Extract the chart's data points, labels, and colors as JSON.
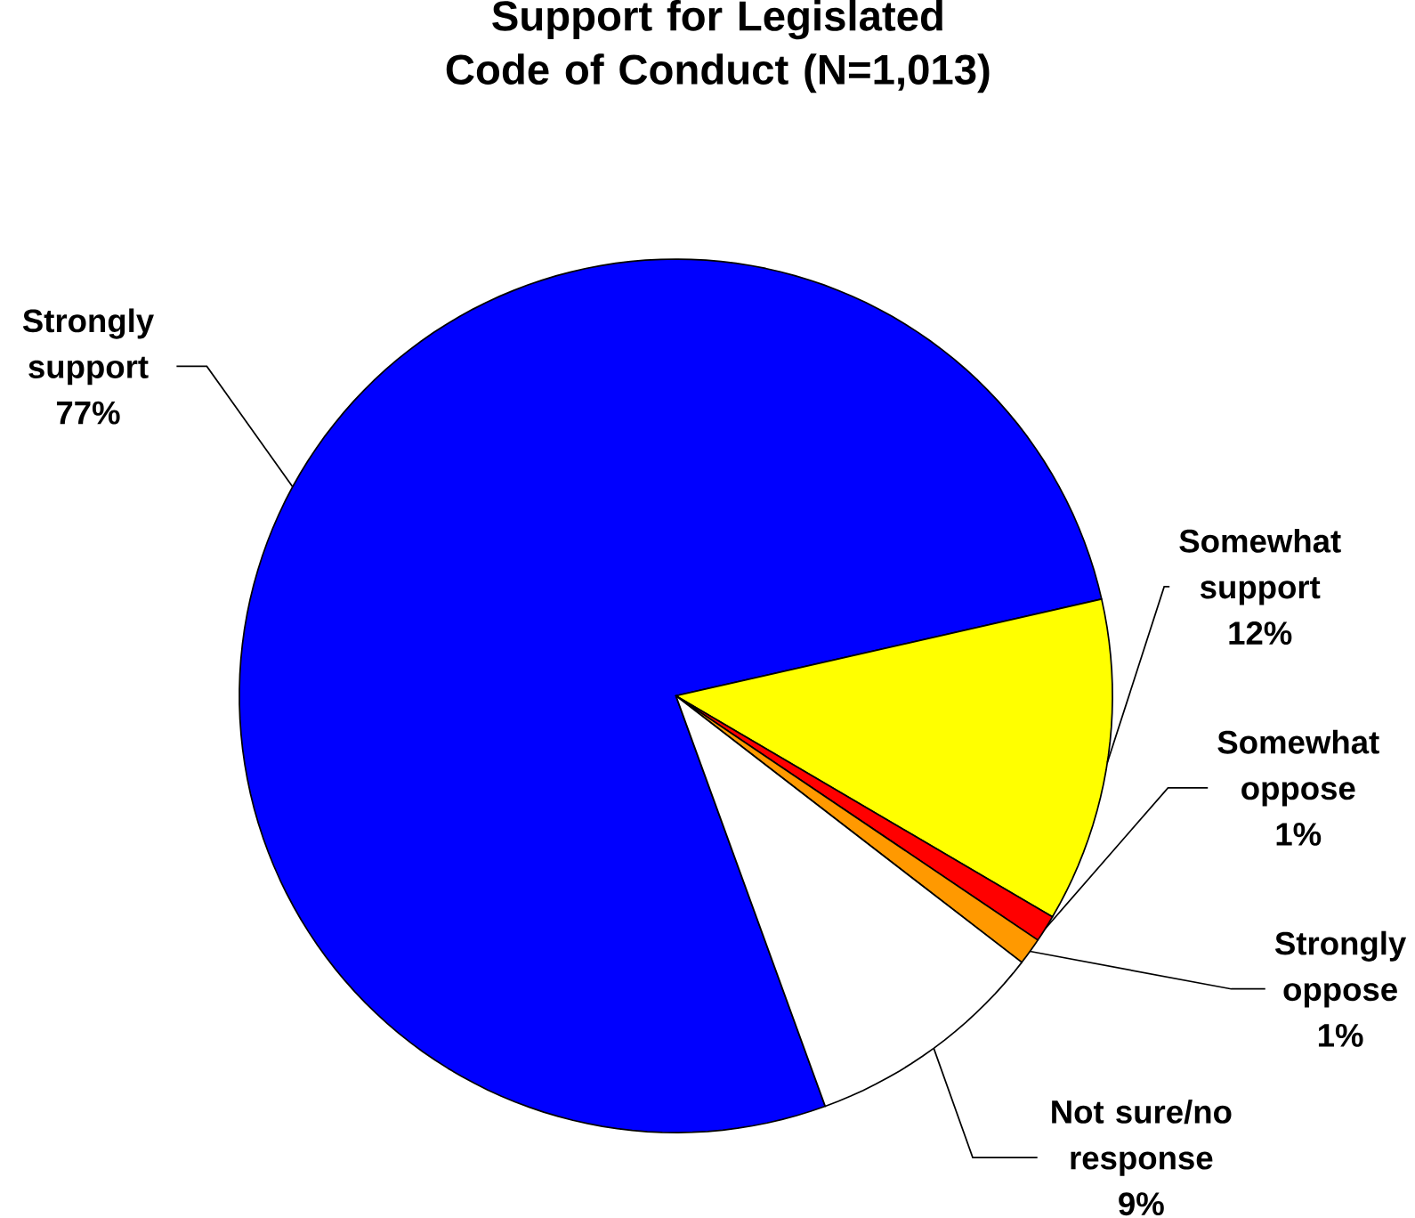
{
  "chart_data": {
    "type": "pie",
    "title": "Support for Legislated Code of Conduct (N=1,013)",
    "categories": [
      "Strongly support",
      "Somewhat support",
      "Somewhat oppose",
      "Strongly oppose",
      "Not sure/no response"
    ],
    "values": [
      77,
      12,
      1,
      1,
      9
    ],
    "value_labels": [
      "77%",
      "12%",
      "1%",
      "1%",
      "9%"
    ],
    "colors": [
      "#0000ff",
      "#ffff00",
      "#ff0000",
      "#ff9900",
      "#ffffff"
    ]
  }
}
